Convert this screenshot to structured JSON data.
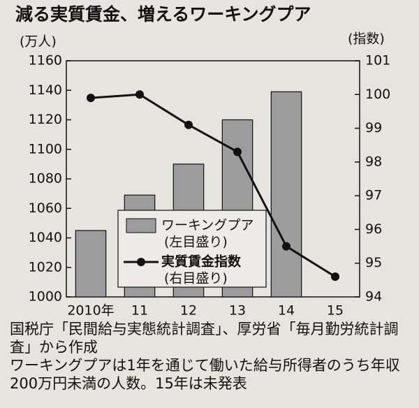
{
  "chart_data": {
    "type": "bar-line",
    "title": "減る実質賃金、増えるワーキングプア",
    "y_label": "(万人)",
    "y2_label": "(指数)",
    "categories": [
      "2010年",
      "11",
      "12",
      "13",
      "14",
      "15"
    ],
    "series": [
      {
        "name": "ワーキングプア",
        "note": "(左目盛り)",
        "type": "bar",
        "color": "#9c9c9c",
        "values": [
          1045,
          1069,
          1090,
          1120,
          1139,
          null
        ]
      },
      {
        "name": "実質賃金指数",
        "note": "(右目盛り)",
        "type": "line",
        "axis": "y2",
        "color": "#111111",
        "values": [
          99.9,
          100,
          99.1,
          98.3,
          95.5,
          94.6
        ]
      }
    ],
    "ylim": [
      1000,
      1160
    ],
    "yticks": [
      1000,
      1020,
      1040,
      1060,
      1080,
      1100,
      1120,
      1140,
      1160
    ],
    "y2lim": [
      94,
      101
    ],
    "y2ticks": [
      94,
      95,
      96,
      97,
      98,
      99,
      100,
      101
    ],
    "legend": "center",
    "notes": [
      "国税庁「民間給与実態統計調査」、厚労省「毎月勤労統計調査」から作成",
      "ワーキングプアは1年を通じて働いた給与所得者のうち年収200万円未満の人数。15年は未発表"
    ]
  }
}
